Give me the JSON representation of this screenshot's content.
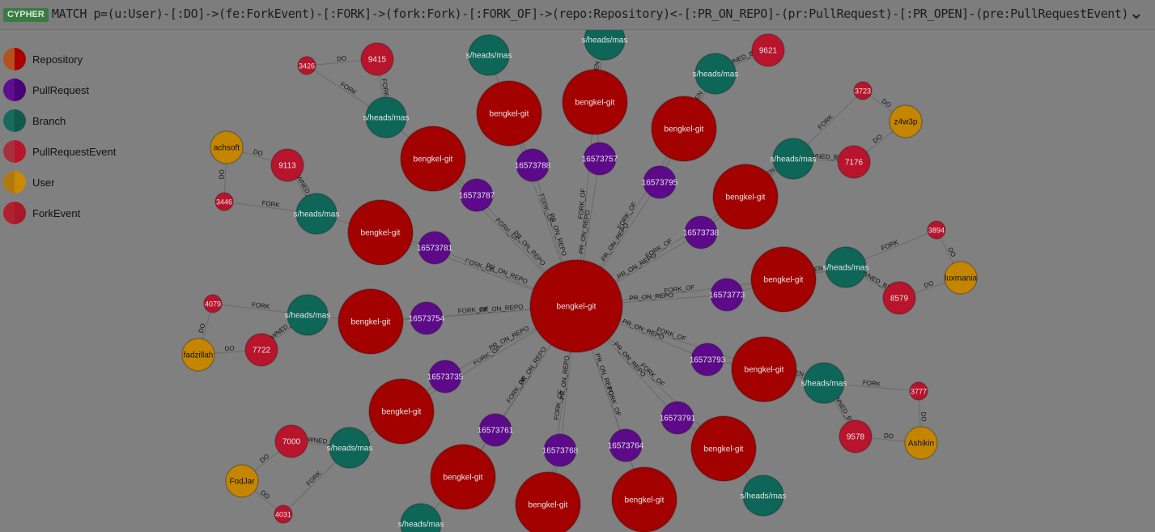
{
  "header": {
    "badge": "CYPHER",
    "query": "MATCH p=(u:User)-[:DO]->(fe:ForkEvent)-[:FORK]->(fork:Fork)-[:FORK_OF]->(repo:Repository)<-[:PR_ON_REPO]-(pr:PullRequest)-[:PR_OPEN]-(pre:PullRequestEvent)",
    "collapse_icon": "chevron-down-icon"
  },
  "legend": [
    {
      "label": "Repository",
      "color_a": "#b5501f",
      "color_b": "#a80000"
    },
    {
      "label": "PullRequest",
      "color_a": "#5e0e8e",
      "color_b": "#4a0078"
    },
    {
      "label": "Branch",
      "color_a": "#176b5c",
      "color_b": "#0f5a4c"
    },
    {
      "label": "PullRequestEvent",
      "color_a": "#a8303c",
      "color_b": "#b8142c"
    },
    {
      "label": "User",
      "color_a": "#b07a10",
      "color_b": "#c88a00"
    },
    {
      "label": "ForkEvent",
      "color_a": "#b0202e",
      "color_b": "#a81828"
    }
  ],
  "colors": {
    "repository": "#a30000",
    "pullrequest": "#5c0a8a",
    "branch": "#0d6658",
    "pullrequestevent": "#b8142c",
    "user": "#c48600",
    "forkevent": "#b8142c",
    "edge": "#6a6a6a",
    "edge_label": "#111111"
  },
  "graph": {
    "center_label": "bengkel-git",
    "repo_label": "bengkel-git",
    "branch_label": "s/heads/mas",
    "pr_labels": [
      "16573788",
      "16573757",
      "16573795",
      "16573738",
      "16573773",
      "16573793",
      "16573791",
      "16573764",
      "16573768",
      "16573761",
      "16573735",
      "16573754",
      "16573781",
      "16573787"
    ],
    "users": [
      "achsoft",
      "z4w3p",
      "luxmania",
      "fadzillah",
      "Ashikin",
      "FodJar"
    ],
    "events": [
      "9415",
      "3426",
      "9621",
      "3723",
      "7176",
      "9113",
      "3446",
      "3894",
      "8579",
      "4079",
      "7722",
      "3777",
      "9578",
      "7000",
      "4031"
    ],
    "edge_labels": [
      "FORK",
      "FORK_OF",
      "PR_ON_REPO",
      "OWNED_BY",
      "DO",
      "OPEN"
    ]
  }
}
